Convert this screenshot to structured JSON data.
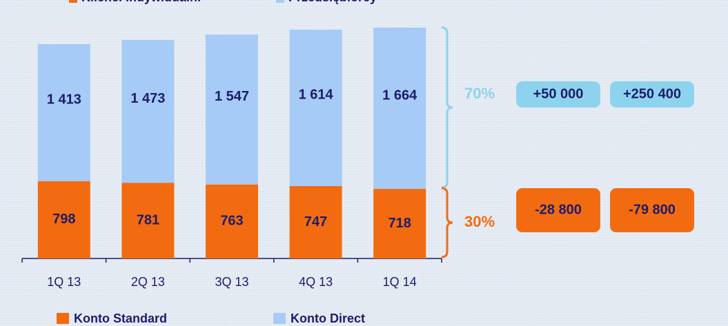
{
  "chart_data": {
    "type": "stacked_bar",
    "header_legend": [
      {
        "text": "Klienci indywidualni",
        "color": "#f36b10"
      },
      {
        "text": "Przedsiębiorcy",
        "color": "#a6cbf7"
      }
    ],
    "categories": [
      "1Q 13",
      "2Q 13",
      "3Q 13",
      "4Q 13",
      "1Q 14"
    ],
    "series": [
      {
        "name": "Konto Standard",
        "color": "#f36b10",
        "values": [
          798,
          781,
          763,
          747,
          718
        ]
      },
      {
        "name": "Konto Direct",
        "color": "#a6cbf7",
        "values": [
          1413,
          1473,
          1547,
          1614,
          1664
        ],
        "value_labels": [
          "1 413",
          "1 473",
          "1 547",
          "1 614",
          "1 664"
        ]
      }
    ],
    "annotations": [
      {
        "share": "30%",
        "color": "#f36b10",
        "changes": [
          "-28 800",
          "-79 800"
        ]
      },
      {
        "share": "70%",
        "color": "#8dd3ee",
        "changes": [
          "+50 000",
          "+250 400"
        ]
      }
    ]
  }
}
